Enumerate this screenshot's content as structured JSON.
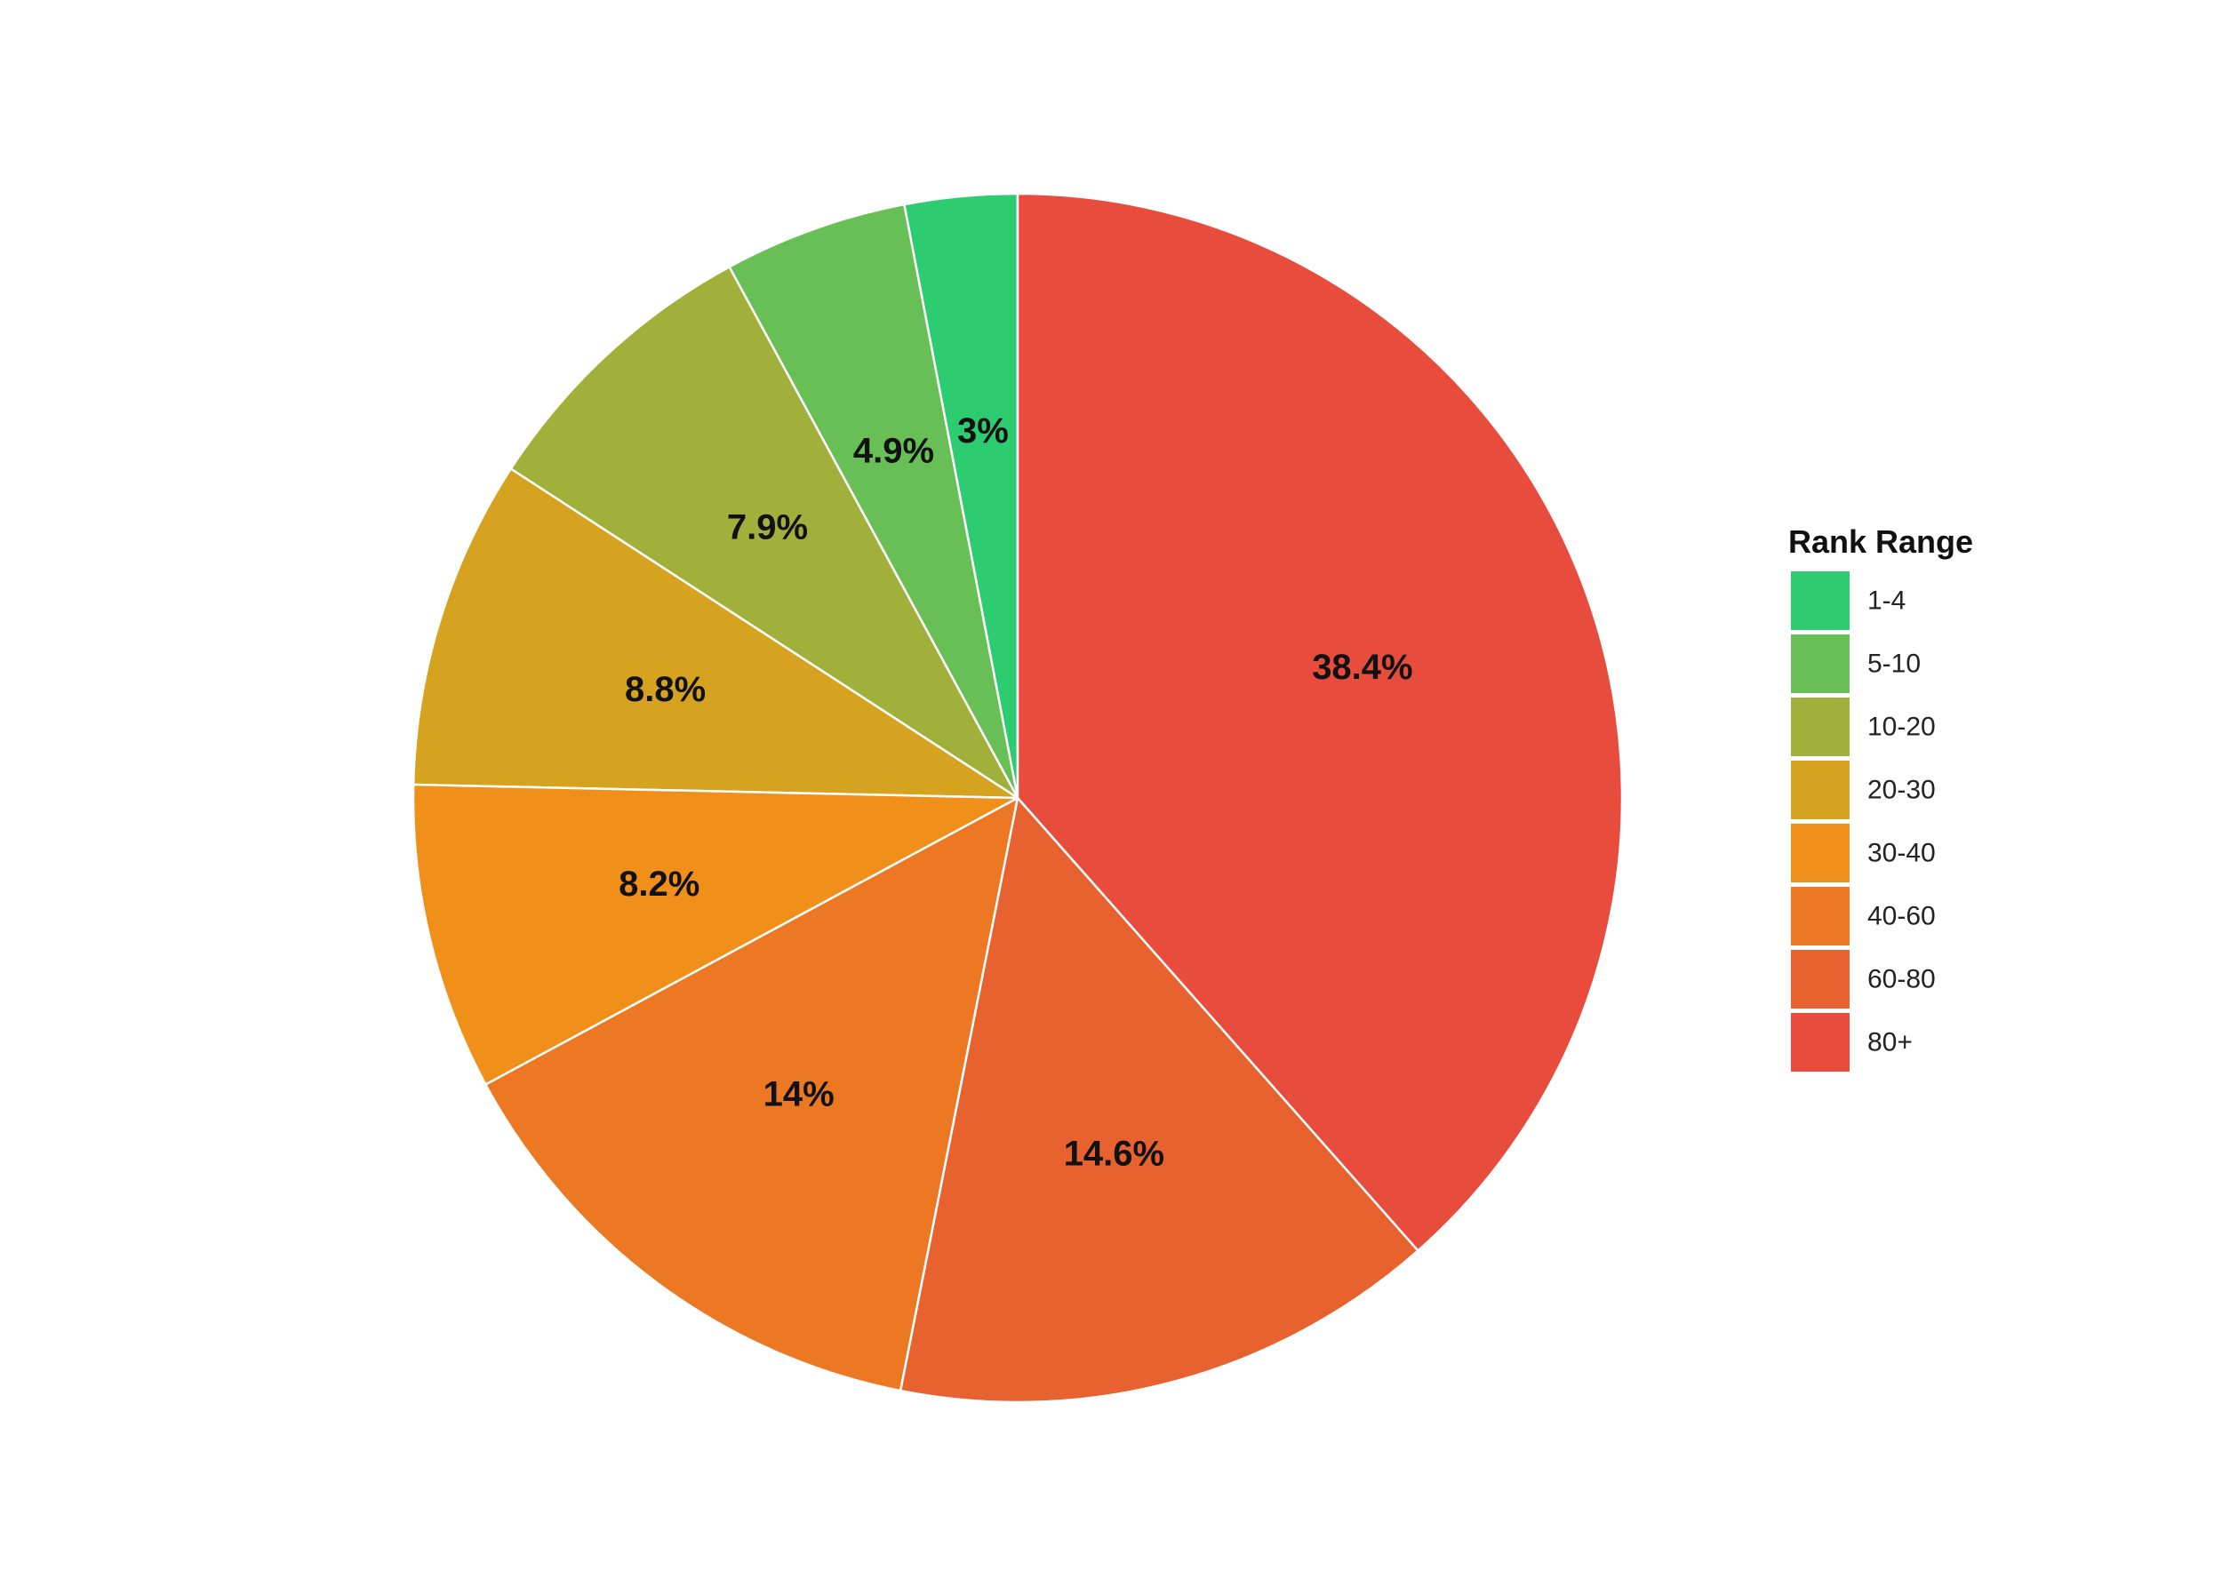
{
  "chart_data": {
    "type": "pie",
    "title": "",
    "legend": {
      "title": "Rank Range",
      "placement": "right"
    },
    "slices": [
      {
        "label": "1-4",
        "value": 3.0,
        "display": "3%",
        "color": "#2ecc71"
      },
      {
        "label": "5-10",
        "value": 4.9,
        "display": "4.9%",
        "color": "#68bf55"
      },
      {
        "label": "10-20",
        "value": 7.9,
        "display": "7.9%",
        "color": "#a0b03a"
      },
      {
        "label": "20-30",
        "value": 8.8,
        "display": "8.8%",
        "color": "#d6a320"
      },
      {
        "label": "30-40",
        "value": 8.2,
        "display": "8.2%",
        "color": "#f0901a"
      },
      {
        "label": "40-60",
        "value": 14.0,
        "display": "14%",
        "color": "#ec7824"
      },
      {
        "label": "60-80",
        "value": 14.6,
        "display": "14.6%",
        "color": "#e8622f"
      },
      {
        "label": "80+",
        "value": 38.4,
        "display": "38.4%",
        "color": "#e74c3c"
      }
    ],
    "start_angle": "12 o'clock",
    "direction": "counterclockwise"
  }
}
